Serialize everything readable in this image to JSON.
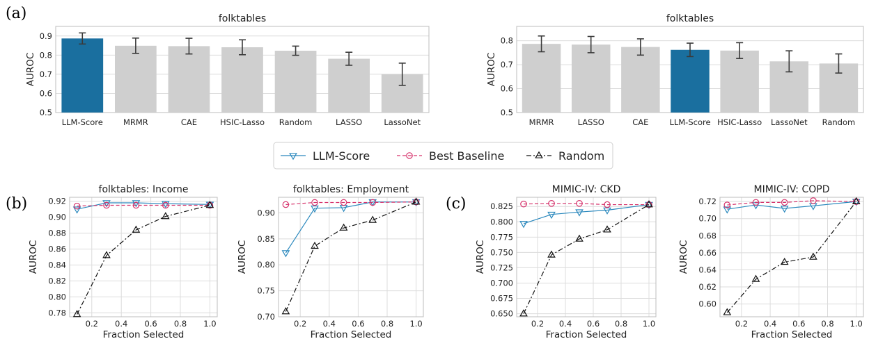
{
  "panel_labels": [
    "(a)",
    "(b)",
    "(c)"
  ],
  "colors": {
    "highlight_bar": "#1a6f9f",
    "bar": "#cfcfcf",
    "llm": "#2a88bd",
    "baseline": "#d6336c",
    "random": "#111111",
    "grid": "#dcdcdc",
    "errorbar": "#3a3a3a"
  },
  "legend": {
    "items": [
      {
        "label": "LLM-Score",
        "marker": "triangle-down",
        "color": "#2a88bd",
        "dash": "solid"
      },
      {
        "label": "Best Baseline",
        "marker": "circle",
        "color": "#d6336c",
        "dash": "dashed"
      },
      {
        "label": "Random",
        "marker": "triangle-up",
        "color": "#111111",
        "dash": "dashdot"
      }
    ]
  },
  "chart_data": [
    {
      "type": "bar",
      "title": "folktables",
      "ylabel": "AUROC",
      "ylim": [
        0.5,
        0.95
      ],
      "yticks": [
        0.5,
        0.6,
        0.7,
        0.8,
        0.9
      ],
      "highlight": "LLM-Score",
      "categories": [
        "LLM-Score",
        "MRMR",
        "CAE",
        "HSIC-Lasso",
        "Random",
        "LASSO",
        "LassoNet"
      ],
      "values": [
        0.887,
        0.849,
        0.847,
        0.841,
        0.823,
        0.781,
        0.7
      ],
      "errors": [
        0.029,
        0.04,
        0.041,
        0.039,
        0.024,
        0.034,
        0.058
      ]
    },
    {
      "type": "bar",
      "title": "folktables",
      "ylabel": "AUROC",
      "ylim": [
        0.5,
        0.86
      ],
      "yticks": [
        0.5,
        0.6,
        0.7,
        0.8
      ],
      "highlight": "LLM-Score",
      "categories": [
        "MRMR",
        "LASSO",
        "CAE",
        "LLM-Score",
        "HSIC-Lasso",
        "LassoNet",
        "Random"
      ],
      "values": [
        0.787,
        0.784,
        0.774,
        0.762,
        0.759,
        0.714,
        0.705
      ],
      "errors": [
        0.033,
        0.034,
        0.034,
        0.028,
        0.033,
        0.044,
        0.04
      ]
    },
    {
      "type": "line",
      "title": "folktables: Income",
      "xlabel": "Fraction Selected",
      "ylabel": "AUROC",
      "xlim": [
        0.05,
        1.05
      ],
      "xticks": [
        0.2,
        0.4,
        0.6,
        0.8,
        1.0
      ],
      "ylim": [
        0.775,
        0.925
      ],
      "yticks": [
        0.78,
        0.8,
        0.82,
        0.84,
        0.86,
        0.88,
        0.9,
        0.92
      ],
      "x": [
        0.1,
        0.3,
        0.5,
        0.7,
        1.0
      ],
      "series": [
        {
          "name": "LLM-Score",
          "values": [
            0.91,
            0.918,
            0.918,
            0.917,
            0.916
          ]
        },
        {
          "name": "Best Baseline",
          "values": [
            0.914,
            0.915,
            0.915,
            0.915,
            0.915
          ]
        },
        {
          "name": "Random",
          "values": [
            0.778,
            0.852,
            0.884,
            0.901,
            0.915
          ]
        }
      ]
    },
    {
      "type": "line",
      "title": "folktables: Employment",
      "xlabel": "Fraction Selected",
      "ylabel": "AUROC",
      "xlim": [
        0.05,
        1.05
      ],
      "xticks": [
        0.2,
        0.4,
        0.6,
        0.8,
        1.0
      ],
      "ylim": [
        0.7,
        0.93
      ],
      "yticks": [
        0.7,
        0.75,
        0.8,
        0.85,
        0.9
      ],
      "x": [
        0.1,
        0.3,
        0.5,
        0.7,
        1.0
      ],
      "series": [
        {
          "name": "LLM-Score",
          "values": [
            0.823,
            0.909,
            0.91,
            0.921,
            0.921
          ]
        },
        {
          "name": "Best Baseline",
          "values": [
            0.916,
            0.92,
            0.92,
            0.92,
            0.921
          ]
        },
        {
          "name": "Random",
          "values": [
            0.71,
            0.836,
            0.871,
            0.886,
            0.921
          ]
        }
      ]
    },
    {
      "type": "line",
      "title": "MIMIC-IV: CKD",
      "xlabel": "Fraction Selected",
      "ylabel": "AUROC",
      "xlim": [
        0.05,
        1.05
      ],
      "xticks": [
        0.2,
        0.4,
        0.6,
        0.8,
        1.0
      ],
      "ylim": [
        0.645,
        0.84
      ],
      "yticks": [
        0.65,
        0.675,
        0.7,
        0.725,
        0.75,
        0.775,
        0.8,
        0.825
      ],
      "x": [
        0.1,
        0.3,
        0.5,
        0.7,
        1.0
      ],
      "series": [
        {
          "name": "LLM-Score",
          "values": [
            0.797,
            0.812,
            0.816,
            0.819,
            0.828
          ]
        },
        {
          "name": "Best Baseline",
          "values": [
            0.829,
            0.83,
            0.83,
            0.828,
            0.828
          ]
        },
        {
          "name": "Random",
          "values": [
            0.65,
            0.746,
            0.772,
            0.787,
            0.828
          ]
        }
      ]
    },
    {
      "type": "line",
      "title": "MIMIC-IV: COPD",
      "xlabel": "Fraction Selected",
      "ylabel": "AUROC",
      "xlim": [
        0.05,
        1.05
      ],
      "xticks": [
        0.2,
        0.4,
        0.6,
        0.8,
        1.0
      ],
      "ylim": [
        0.585,
        0.725
      ],
      "yticks": [
        0.6,
        0.62,
        0.64,
        0.66,
        0.68,
        0.7,
        0.72
      ],
      "x": [
        0.1,
        0.3,
        0.5,
        0.7,
        1.0
      ],
      "series": [
        {
          "name": "LLM-Score",
          "values": [
            0.711,
            0.716,
            0.712,
            0.715,
            0.72
          ]
        },
        {
          "name": "Best Baseline",
          "values": [
            0.716,
            0.719,
            0.719,
            0.721,
            0.72
          ]
        },
        {
          "name": "Random",
          "values": [
            0.59,
            0.629,
            0.649,
            0.655,
            0.72
          ]
        }
      ]
    }
  ]
}
